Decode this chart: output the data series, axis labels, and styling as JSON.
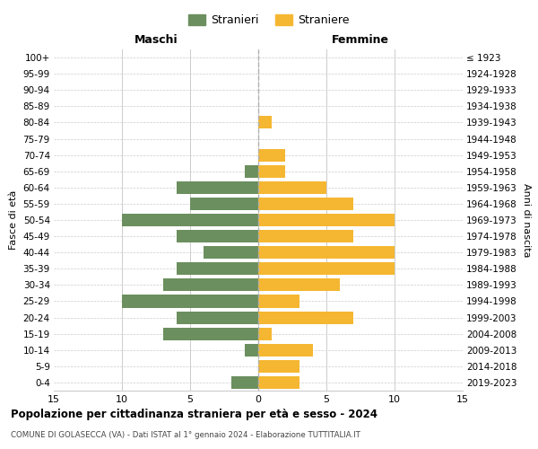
{
  "age_groups": [
    "0-4",
    "5-9",
    "10-14",
    "15-19",
    "20-24",
    "25-29",
    "30-34",
    "35-39",
    "40-44",
    "45-49",
    "50-54",
    "55-59",
    "60-64",
    "65-69",
    "70-74",
    "75-79",
    "80-84",
    "85-89",
    "90-94",
    "95-99",
    "100+"
  ],
  "birth_years": [
    "2019-2023",
    "2014-2018",
    "2009-2013",
    "2004-2008",
    "1999-2003",
    "1994-1998",
    "1989-1993",
    "1984-1988",
    "1979-1983",
    "1974-1978",
    "1969-1973",
    "1964-1968",
    "1959-1963",
    "1954-1958",
    "1949-1953",
    "1944-1948",
    "1939-1943",
    "1934-1938",
    "1929-1933",
    "1924-1928",
    "≤ 1923"
  ],
  "maschi": [
    2,
    0,
    1,
    7,
    6,
    10,
    7,
    6,
    4,
    6,
    10,
    5,
    6,
    1,
    0,
    0,
    0,
    0,
    0,
    0,
    0
  ],
  "femmine": [
    3,
    3,
    4,
    1,
    7,
    3,
    6,
    10,
    10,
    7,
    10,
    7,
    5,
    2,
    2,
    0,
    1,
    0,
    0,
    0,
    0
  ],
  "color_maschi": "#6b8f5e",
  "color_femmine": "#f5b731",
  "color_dashed": "#b0b0b0",
  "title": "Popolazione per cittadinanza straniera per età e sesso - 2024",
  "subtitle": "COMUNE DI GOLASECCA (VA) - Dati ISTAT al 1° gennaio 2024 - Elaborazione TUTTITALIA.IT",
  "legend_maschi": "Stranieri",
  "legend_femmine": "Straniere",
  "label_maschi": "Maschi",
  "label_femmine": "Femmine",
  "ylabel_left": "Fasce di età",
  "ylabel_right": "Anni di nascita",
  "xlim": 15,
  "bg_color": "#ffffff",
  "grid_color": "#cccccc",
  "grid_color_y": "#cccccc"
}
